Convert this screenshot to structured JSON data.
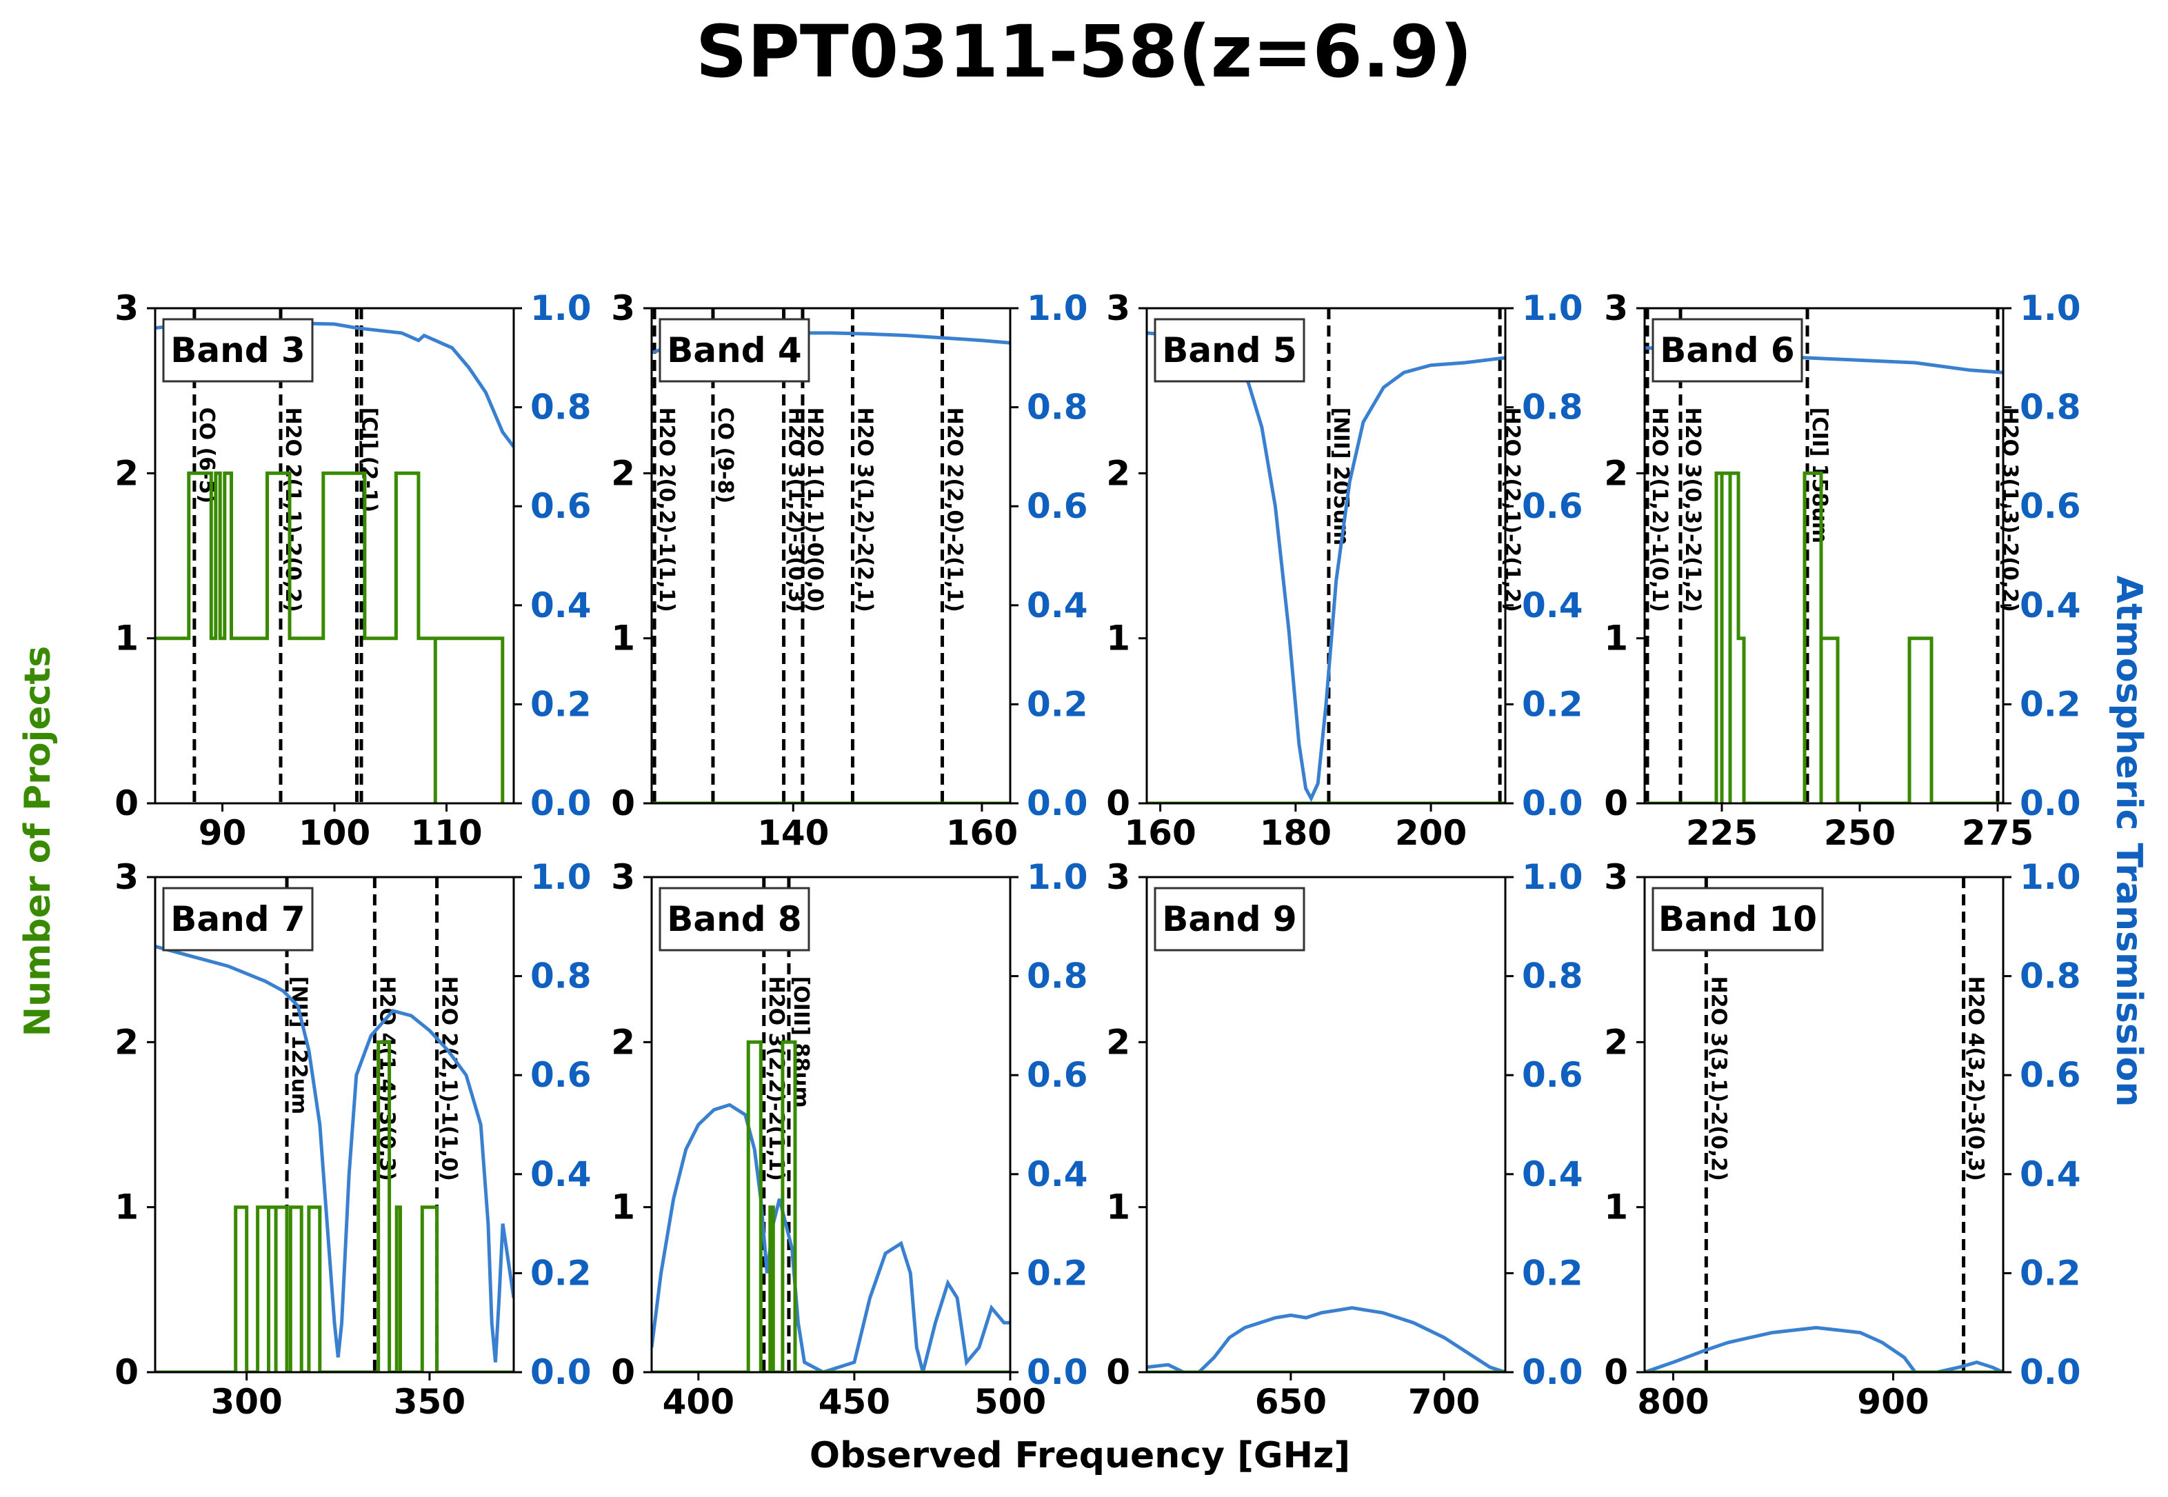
{
  "title": "SPT0311-58(z=6.9)",
  "xlabel": "Observed Frequency [GHz]",
  "ylabel_left": "Number of Projects",
  "ylabel_right": "Atmospheric Transmission",
  "colors": {
    "projects": "#3a8a00",
    "transmission": "#3a80d0",
    "right_axis": "#1060c0",
    "left_label": "#3a8a00"
  },
  "chart_data": [
    {
      "type": "line",
      "band": "Band 3",
      "xlim": [
        84,
        116
      ],
      "ylim_left": [
        0,
        3
      ],
      "ylim_right": [
        0,
        1.0
      ],
      "xticks": [
        90,
        100,
        110
      ],
      "lines": [
        {
          "x": 87.5,
          "label": "CO (6-5)"
        },
        {
          "x": 95.2,
          "label": "H2O 2(1,1)-2(0,2)"
        },
        {
          "x": 102.0,
          "label": "[CI] (2-1)"
        },
        {
          "x": 102.4,
          "label": ""
        }
      ],
      "projects": [
        [
          84,
          1
        ],
        [
          87,
          1
        ],
        [
          87,
          2
        ],
        [
          89,
          2
        ],
        [
          89,
          1
        ],
        [
          89.4,
          1
        ],
        [
          89.4,
          2
        ],
        [
          89.8,
          2
        ],
        [
          89.8,
          1
        ],
        [
          90.2,
          1
        ],
        [
          90.2,
          2
        ],
        [
          90.8,
          2
        ],
        [
          90.8,
          1
        ],
        [
          94,
          1
        ],
        [
          94,
          2
        ],
        [
          96,
          2
        ],
        [
          96,
          1
        ],
        [
          99,
          1
        ],
        [
          99,
          2
        ],
        [
          102.7,
          2
        ],
        [
          102.7,
          1
        ],
        [
          105.5,
          1
        ],
        [
          105.5,
          2
        ],
        [
          107.5,
          2
        ],
        [
          107.5,
          1
        ],
        [
          109,
          1
        ],
        [
          109,
          0
        ],
        [
          109,
          1
        ],
        [
          115,
          1
        ],
        [
          115,
          0
        ]
      ],
      "transmission": [
        [
          84,
          0.96
        ],
        [
          88,
          0.97
        ],
        [
          92,
          0.97
        ],
        [
          96,
          0.97
        ],
        [
          100,
          0.968
        ],
        [
          102,
          0.96
        ],
        [
          104,
          0.955
        ],
        [
          106,
          0.95
        ],
        [
          107.5,
          0.935
        ],
        [
          108,
          0.945
        ],
        [
          109.5,
          0.93
        ],
        [
          110.5,
          0.92
        ],
        [
          112,
          0.88
        ],
        [
          113.5,
          0.83
        ],
        [
          115,
          0.75
        ],
        [
          116,
          0.72
        ]
      ]
    },
    {
      "type": "line",
      "band": "Band 4",
      "xlim": [
        125,
        163
      ],
      "ylim_left": [
        0,
        3
      ],
      "ylim_right": [
        0,
        1.0
      ],
      "xticks": [
        140,
        160
      ],
      "lines": [
        {
          "x": 125.3,
          "label": "H2O 2(0,2)-1(1,1)"
        },
        {
          "x": 131.5,
          "label": "CO (9-8)"
        },
        {
          "x": 139.0,
          "label": "H2O 3(1,2)-3(0,3)"
        },
        {
          "x": 141.0,
          "label": "H2O 1(1,1)-0(0,0)"
        },
        {
          "x": 146.3,
          "label": "H2O 3(1,2)-2(2,1)"
        },
        {
          "x": 155.8,
          "label": "H2O 2(2,0)-2(1,1)"
        }
      ],
      "projects": [
        [
          125,
          0
        ],
        [
          163,
          0
        ]
      ],
      "transmission": [
        [
          125,
          0.91
        ],
        [
          128,
          0.93
        ],
        [
          132,
          0.94
        ],
        [
          136,
          0.948
        ],
        [
          140,
          0.95
        ],
        [
          144,
          0.95
        ],
        [
          148,
          0.948
        ],
        [
          152,
          0.945
        ],
        [
          156,
          0.94
        ],
        [
          160,
          0.935
        ],
        [
          163,
          0.93
        ]
      ]
    },
    {
      "type": "line",
      "band": "Band 5",
      "xlim": [
        158,
        211
      ],
      "ylim_left": [
        0,
        3
      ],
      "ylim_right": [
        0,
        1.0
      ],
      "xticks": [
        160,
        180,
        200
      ],
      "lines": [
        {
          "x": 184.9,
          "label": "[NII] 205um"
        },
        {
          "x": 210.2,
          "label": "H2O 2(2,1)-2(1,2)"
        }
      ],
      "projects": [
        [
          158,
          0
        ],
        [
          211,
          0
        ]
      ],
      "transmission": [
        [
          158,
          0.95
        ],
        [
          162,
          0.945
        ],
        [
          166,
          0.93
        ],
        [
          170,
          0.9
        ],
        [
          173,
          0.85
        ],
        [
          175,
          0.76
        ],
        [
          177,
          0.6
        ],
        [
          179,
          0.35
        ],
        [
          180.5,
          0.12
        ],
        [
          181.5,
          0.03
        ],
        [
          182.3,
          0.01
        ],
        [
          183.3,
          0.04
        ],
        [
          184.5,
          0.2
        ],
        [
          186,
          0.45
        ],
        [
          188,
          0.65
        ],
        [
          190,
          0.77
        ],
        [
          193,
          0.84
        ],
        [
          196,
          0.87
        ],
        [
          200,
          0.885
        ],
        [
          205,
          0.89
        ],
        [
          211,
          0.9
        ]
      ]
    },
    {
      "type": "line",
      "band": "Band 6",
      "xlim": [
        211,
        276
      ],
      "ylim_left": [
        0,
        3
      ],
      "ylim_right": [
        0,
        1.0
      ],
      "xticks": [
        225,
        250,
        275
      ],
      "lines": [
        {
          "x": 211.5,
          "label": "H2O 2(1,2)-1(0,1)"
        },
        {
          "x": 217.5,
          "label": "H2O 3(0,3)-2(1,2)"
        },
        {
          "x": 240.5,
          "label": "[CII] 158um"
        },
        {
          "x": 275.0,
          "label": "H2O 3(1,3)-2(0,2)"
        }
      ],
      "projects": [
        [
          211,
          0
        ],
        [
          224,
          0
        ],
        [
          224,
          2
        ],
        [
          225,
          2
        ],
        [
          225,
          0
        ],
        [
          225,
          2
        ],
        [
          226.5,
          2
        ],
        [
          226.5,
          0
        ],
        [
          226.5,
          2
        ],
        [
          228,
          2
        ],
        [
          228,
          1
        ],
        [
          229,
          1
        ],
        [
          229,
          0
        ],
        [
          240,
          0
        ],
        [
          240,
          2
        ],
        [
          243,
          2
        ],
        [
          243,
          1
        ],
        [
          243,
          0
        ],
        [
          243,
          1
        ],
        [
          246,
          1
        ],
        [
          246,
          0
        ],
        [
          259,
          0
        ],
        [
          259,
          1
        ],
        [
          263,
          1
        ],
        [
          263,
          0
        ],
        [
          276,
          0
        ]
      ],
      "transmission": [
        [
          211,
          0.92
        ],
        [
          220,
          0.915
        ],
        [
          230,
          0.905
        ],
        [
          240,
          0.9
        ],
        [
          250,
          0.895
        ],
        [
          260,
          0.89
        ],
        [
          270,
          0.875
        ],
        [
          276,
          0.87
        ]
      ]
    },
    {
      "type": "line",
      "band": "Band 7",
      "xlim": [
        275,
        373
      ],
      "ylim_left": [
        0,
        3
      ],
      "ylim_right": [
        0,
        1.0
      ],
      "xticks": [
        300,
        350
      ],
      "lines": [
        {
          "x": 311.0,
          "label": "[NII] 122um"
        },
        {
          "x": 335.0,
          "label": "H2O 4(1,4)-3(0,3)"
        },
        {
          "x": 352.0,
          "label": "H2O 2(2,1)-1(1,0)"
        }
      ],
      "projects": [
        [
          275,
          0
        ],
        [
          297,
          0
        ],
        [
          297,
          1
        ],
        [
          300,
          1
        ],
        [
          300,
          0
        ],
        [
          303,
          0
        ],
        [
          303,
          1
        ],
        [
          306,
          1
        ],
        [
          306,
          0
        ],
        [
          306,
          1
        ],
        [
          308,
          1
        ],
        [
          308,
          0
        ],
        [
          308,
          1
        ],
        [
          311,
          1
        ],
        [
          311,
          0
        ],
        [
          312,
          0
        ],
        [
          312,
          1
        ],
        [
          315,
          1
        ],
        [
          315,
          0
        ],
        [
          317,
          0
        ],
        [
          317,
          1
        ],
        [
          320,
          1
        ],
        [
          320,
          0
        ],
        [
          336,
          0
        ],
        [
          336,
          2
        ],
        [
          339,
          2
        ],
        [
          339,
          0
        ],
        [
          341,
          0
        ],
        [
          341,
          1
        ],
        [
          342,
          1
        ],
        [
          342,
          0
        ],
        [
          348,
          0
        ],
        [
          348,
          1
        ],
        [
          352,
          1
        ],
        [
          352,
          0
        ],
        [
          373,
          0
        ]
      ],
      "transmission": [
        [
          275,
          0.86
        ],
        [
          285,
          0.84
        ],
        [
          295,
          0.82
        ],
        [
          305,
          0.79
        ],
        [
          310,
          0.77
        ],
        [
          314,
          0.74
        ],
        [
          317,
          0.65
        ],
        [
          320,
          0.5
        ],
        [
          322,
          0.3
        ],
        [
          324,
          0.1
        ],
        [
          325,
          0.03
        ],
        [
          326,
          0.1
        ],
        [
          328,
          0.4
        ],
        [
          330,
          0.6
        ],
        [
          334,
          0.68
        ],
        [
          340,
          0.73
        ],
        [
          345,
          0.72
        ],
        [
          350,
          0.69
        ],
        [
          355,
          0.65
        ],
        [
          360,
          0.6
        ],
        [
          364,
          0.5
        ],
        [
          366,
          0.3
        ],
        [
          367,
          0.1
        ],
        [
          368,
          0.02
        ],
        [
          369,
          0.15
        ],
        [
          370,
          0.3
        ],
        [
          371,
          0.25
        ],
        [
          373,
          0.15
        ]
      ]
    },
    {
      "type": "line",
      "band": "Band 8",
      "xlim": [
        385,
        500
      ],
      "ylim_left": [
        0,
        3
      ],
      "ylim_right": [
        0,
        1.0
      ],
      "xticks": [
        400,
        450,
        500
      ],
      "lines": [
        {
          "x": 421.0,
          "label": "H2O 3(2,2)-2(1,1)"
        },
        {
          "x": 429.0,
          "label": "[OIII] 88um"
        }
      ],
      "projects": [
        [
          385,
          0
        ],
        [
          416,
          0
        ],
        [
          416,
          2
        ],
        [
          420,
          2
        ],
        [
          420,
          0
        ],
        [
          423,
          0
        ],
        [
          423,
          1
        ],
        [
          424,
          1
        ],
        [
          424,
          0
        ],
        [
          427,
          0
        ],
        [
          427,
          2
        ],
        [
          431,
          2
        ],
        [
          431,
          0
        ],
        [
          500,
          0
        ]
      ],
      "transmission": [
        [
          385,
          0.05
        ],
        [
          388,
          0.2
        ],
        [
          392,
          0.35
        ],
        [
          396,
          0.45
        ],
        [
          400,
          0.5
        ],
        [
          405,
          0.53
        ],
        [
          410,
          0.54
        ],
        [
          415,
          0.52
        ],
        [
          418,
          0.45
        ],
        [
          420,
          0.35
        ],
        [
          422,
          0.2
        ],
        [
          424,
          0.3
        ],
        [
          426,
          0.35
        ],
        [
          428,
          0.3
        ],
        [
          430,
          0.25
        ],
        [
          432,
          0.1
        ],
        [
          434,
          0.02
        ],
        [
          440,
          0.0
        ],
        [
          450,
          0.02
        ],
        [
          455,
          0.15
        ],
        [
          460,
          0.24
        ],
        [
          465,
          0.26
        ],
        [
          468,
          0.2
        ],
        [
          470,
          0.05
        ],
        [
          472,
          0.0
        ],
        [
          476,
          0.1
        ],
        [
          480,
          0.18
        ],
        [
          483,
          0.15
        ],
        [
          486,
          0.02
        ],
        [
          490,
          0.05
        ],
        [
          494,
          0.13
        ],
        [
          498,
          0.1
        ],
        [
          500,
          0.1
        ]
      ]
    },
    {
      "type": "line",
      "band": "Band 9",
      "xlim": [
        603,
        720
      ],
      "ylim_left": [
        0,
        3
      ],
      "ylim_right": [
        0,
        1.0
      ],
      "xticks": [
        650,
        700
      ],
      "lines": [],
      "projects": [
        [
          603,
          0
        ],
        [
          720,
          0
        ]
      ],
      "transmission": [
        [
          603,
          0.01
        ],
        [
          610,
          0.015
        ],
        [
          615,
          0.0
        ],
        [
          620,
          0.0
        ],
        [
          625,
          0.03
        ],
        [
          630,
          0.07
        ],
        [
          635,
          0.09
        ],
        [
          640,
          0.1
        ],
        [
          645,
          0.11
        ],
        [
          650,
          0.115
        ],
        [
          655,
          0.11
        ],
        [
          660,
          0.12
        ],
        [
          665,
          0.125
        ],
        [
          670,
          0.13
        ],
        [
          675,
          0.125
        ],
        [
          680,
          0.12
        ],
        [
          690,
          0.1
        ],
        [
          700,
          0.07
        ],
        [
          710,
          0.03
        ],
        [
          715,
          0.01
        ],
        [
          720,
          0.0
        ]
      ]
    },
    {
      "type": "line",
      "band": "Band 10",
      "xlim": [
        787,
        950
      ],
      "ylim_left": [
        0,
        3
      ],
      "ylim_right": [
        0,
        1.0
      ],
      "xticks": [
        800,
        900
      ],
      "lines": [
        {
          "x": 815.0,
          "label": "H2O 3(3,1)-2(0,2)"
        },
        {
          "x": 932.0,
          "label": "H2O 4(3,2)-3(0,3)"
        }
      ],
      "projects": [
        [
          787,
          0
        ],
        [
          950,
          0
        ]
      ],
      "transmission": [
        [
          787,
          0.0
        ],
        [
          800,
          0.02
        ],
        [
          815,
          0.045
        ],
        [
          825,
          0.06
        ],
        [
          835,
          0.07
        ],
        [
          845,
          0.08
        ],
        [
          855,
          0.085
        ],
        [
          865,
          0.09
        ],
        [
          875,
          0.085
        ],
        [
          885,
          0.08
        ],
        [
          895,
          0.06
        ],
        [
          905,
          0.03
        ],
        [
          910,
          0.0
        ],
        [
          920,
          0.0
        ],
        [
          930,
          0.01
        ],
        [
          938,
          0.02
        ],
        [
          945,
          0.01
        ],
        [
          950,
          0.0
        ]
      ]
    }
  ]
}
